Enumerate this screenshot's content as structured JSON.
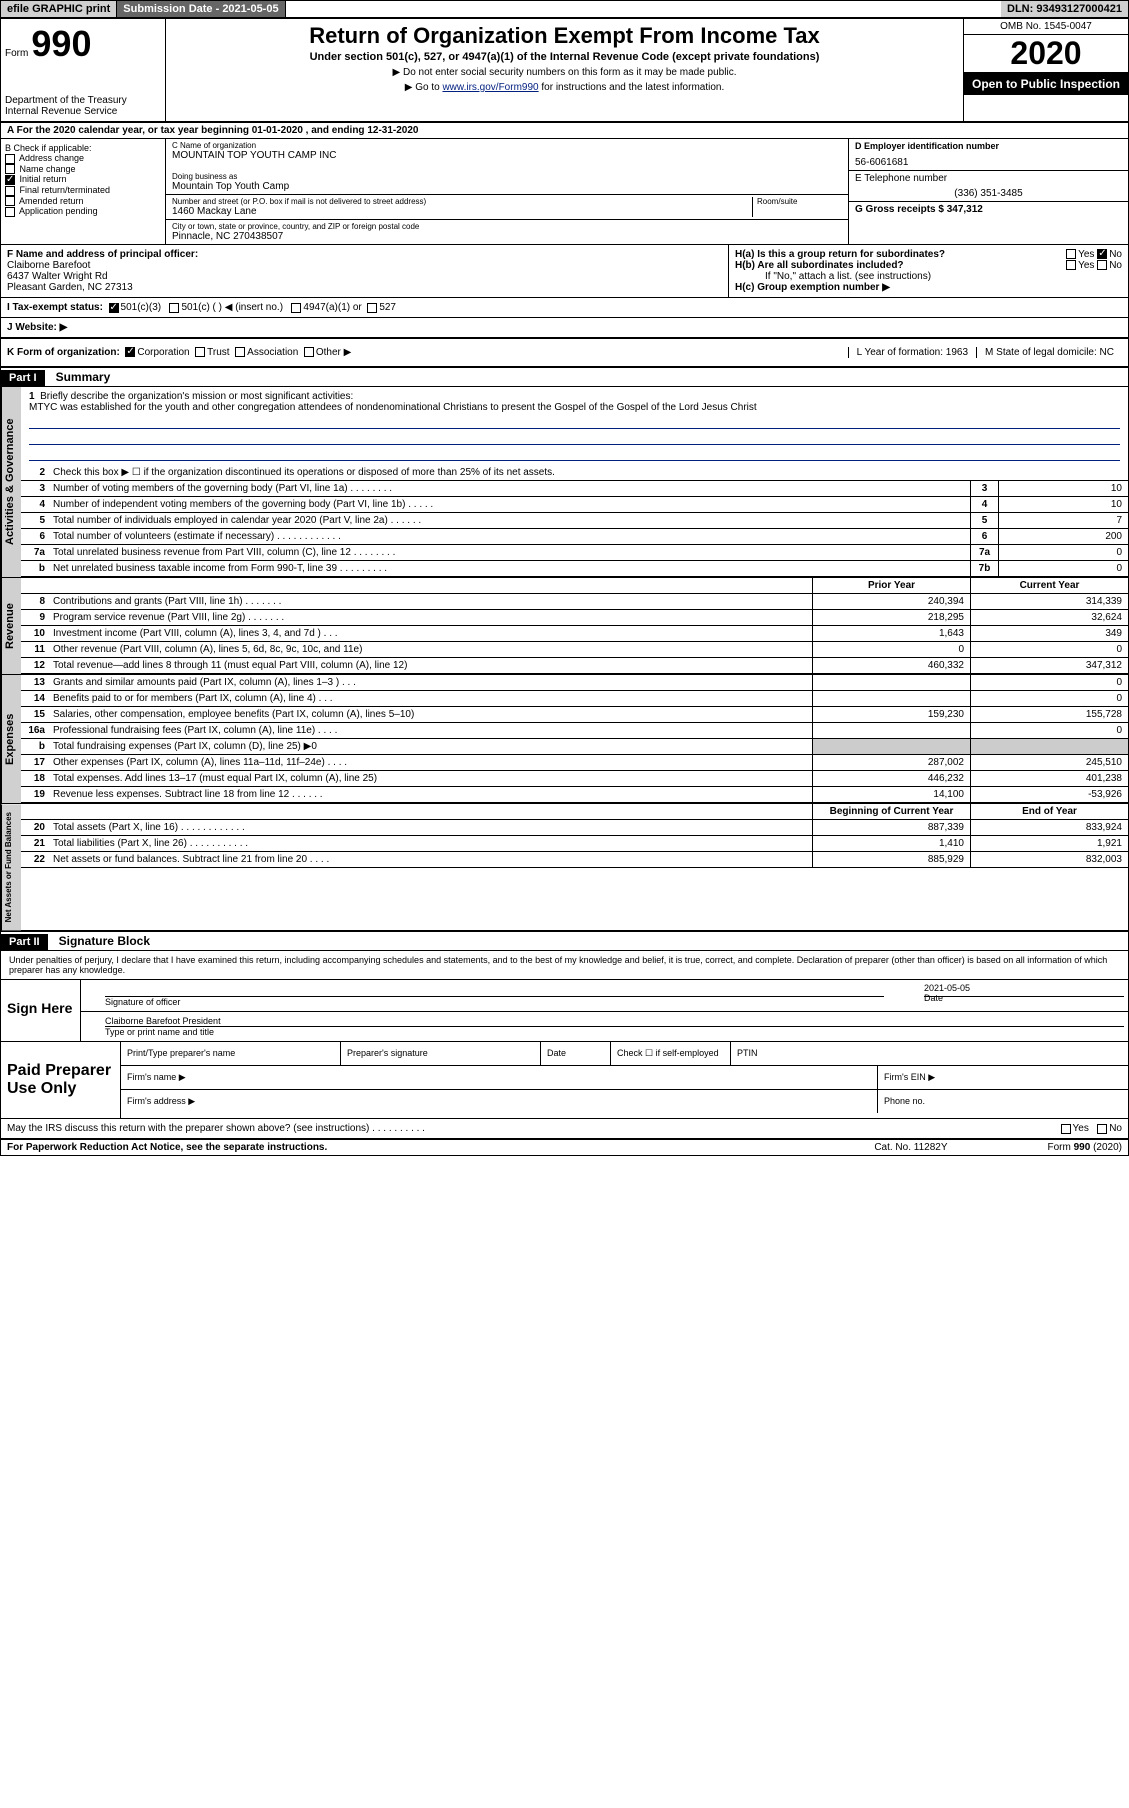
{
  "topbar": {
    "efile": "efile GRAPHIC print",
    "sub_label": "Submission Date - 2021-05-05",
    "dln": "DLN: 93493127000421"
  },
  "header": {
    "form_word": "Form",
    "form_num": "990",
    "dept": "Department of the Treasury\nInternal Revenue Service",
    "title": "Return of Organization Exempt From Income Tax",
    "subtitle": "Under section 501(c), 527, or 4947(a)(1) of the Internal Revenue Code (except private foundations)",
    "hint1": "▶ Do not enter social security numbers on this form as it may be made public.",
    "hint2_pre": "▶ Go to ",
    "hint2_link": "www.irs.gov/Form990",
    "hint2_post": " for instructions and the latest information.",
    "omb": "OMB No. 1545-0047",
    "year": "2020",
    "open": "Open to Public Inspection"
  },
  "line_a": "A  For the 2020 calendar year, or tax year beginning 01-01-2020       , and ending 12-31-2020",
  "section_b": {
    "label": "B Check if applicable:",
    "items": [
      "Address change",
      "Name change",
      "Initial return",
      "Final return/terminated",
      "Amended return",
      "Application pending"
    ],
    "checked_index": 2
  },
  "section_c": {
    "name_label": "C Name of organization",
    "name": "MOUNTAIN TOP YOUTH CAMP INC",
    "dba_label": "Doing business as",
    "dba": "Mountain Top Youth Camp",
    "addr_label": "Number and street (or P.O. box if mail is not delivered to street address)",
    "addr": "1460 Mackay Lane",
    "room": "Room/suite",
    "city_label": "City or town, state or province, country, and ZIP or foreign postal code",
    "city": "Pinnacle, NC  270438507"
  },
  "section_d": {
    "label": "D Employer identification number",
    "ein": "56-6061681",
    "e_label": "E Telephone number",
    "phone": "(336) 351-3485",
    "g_label": "G Gross receipts $ 347,312"
  },
  "section_f": {
    "label": "F  Name and address of principal officer:",
    "name": "Claiborne Barefoot",
    "addr1": "6437 Walter Wright Rd",
    "addr2": "Pleasant Garden, NC  27313"
  },
  "section_h": {
    "ha": "H(a)  Is this a group return for subordinates?",
    "hb": "H(b)  Are all subordinates included?",
    "hb_note": "If \"No,\" attach a list. (see instructions)",
    "hc": "H(c)  Group exemption number ▶",
    "yes": "Yes",
    "no": "No"
  },
  "tax_status": {
    "label": "I   Tax-exempt status:",
    "opts": [
      "501(c)(3)",
      "501(c) (   ) ◀ (insert no.)",
      "4947(a)(1) or",
      "527"
    ]
  },
  "j_label": "J   Website: ▶",
  "k": {
    "label": "K Form of organization:",
    "opts": [
      "Corporation",
      "Trust",
      "Association",
      "Other ▶"
    ],
    "l_label": "L Year of formation: 1963",
    "m_label": "M State of legal domicile: NC"
  },
  "part1": {
    "num": "Part I",
    "title": "Summary"
  },
  "mission": {
    "num": "1",
    "label": "Briefly describe the organization's mission or most significant activities:",
    "text": "MTYC was established for the youth and other congregation attendees of nondenominational Christians to present the Gospel of the Gospel of the Lord Jesus Christ"
  },
  "lines_gov": [
    {
      "n": "2",
      "t": "Check this box ▶ ☐  if the organization discontinued its operations or disposed of more than 25% of its net assets."
    },
    {
      "n": "3",
      "t": "Number of voting members of the governing body (Part VI, line 1a)   .    .    .    .    .    .    .    .",
      "box": "3",
      "v": "10"
    },
    {
      "n": "4",
      "t": "Number of independent voting members of the governing body (Part VI, line 1b)  .    .    .    .    .",
      "box": "4",
      "v": "10"
    },
    {
      "n": "5",
      "t": "Total number of individuals employed in calendar year 2020 (Part V, line 2a)  .    .    .    .    .    .",
      "box": "5",
      "v": "7"
    },
    {
      "n": "6",
      "t": "Total number of volunteers (estimate if necessary)    .    .    .    .    .    .    .    .    .    .    .    .",
      "box": "6",
      "v": "200"
    },
    {
      "n": "7a",
      "t": "Total unrelated business revenue from Part VIII, column (C), line 12  .    .    .    .    .    .    .    .",
      "box": "7a",
      "v": "0"
    },
    {
      "n": "b",
      "t": "Net unrelated business taxable income from Form 990-T, line 39   .    .    .    .    .    .    .    .    .",
      "box": "7b",
      "v": "0"
    }
  ],
  "col_headers": {
    "prior": "Prior Year",
    "current": "Current Year"
  },
  "lines_rev": [
    {
      "n": "8",
      "t": "Contributions and grants (Part VIII, line 1h)   .    .    .    .    .    .    .",
      "p": "240,394",
      "c": "314,339"
    },
    {
      "n": "9",
      "t": "Program service revenue (Part VIII, line 2g)   .    .    .    .    .    .    .",
      "p": "218,295",
      "c": "32,624"
    },
    {
      "n": "10",
      "t": "Investment income (Part VIII, column (A), lines 3, 4, and 7d )   .    .    .",
      "p": "1,643",
      "c": "349"
    },
    {
      "n": "11",
      "t": "Other revenue (Part VIII, column (A), lines 5, 6d, 8c, 9c, 10c, and 11e)",
      "p": "0",
      "c": "0"
    },
    {
      "n": "12",
      "t": "Total revenue—add lines 8 through 11 (must equal Part VIII, column (A), line 12)",
      "p": "460,332",
      "c": "347,312"
    }
  ],
  "lines_exp": [
    {
      "n": "13",
      "t": "Grants and similar amounts paid (Part IX, column (A), lines 1–3 )  .    .    .",
      "p": "",
      "c": "0"
    },
    {
      "n": "14",
      "t": "Benefits paid to or for members (Part IX, column (A), line 4)   .    .    .",
      "p": "",
      "c": "0"
    },
    {
      "n": "15",
      "t": "Salaries, other compensation, employee benefits (Part IX, column (A), lines 5–10)",
      "p": "159,230",
      "c": "155,728"
    },
    {
      "n": "16a",
      "t": "Professional fundraising fees (Part IX, column (A), line 11e)  .    .    .    .",
      "p": "",
      "c": "0"
    },
    {
      "n": "b",
      "t": "Total fundraising expenses (Part IX, column (D), line 25) ▶0",
      "shade": true
    },
    {
      "n": "17",
      "t": "Other expenses (Part IX, column (A), lines 11a–11d, 11f–24e)   .    .    .    .",
      "p": "287,002",
      "c": "245,510"
    },
    {
      "n": "18",
      "t": "Total expenses. Add lines 13–17 (must equal Part IX, column (A), line 25)",
      "p": "446,232",
      "c": "401,238"
    },
    {
      "n": "19",
      "t": "Revenue less expenses. Subtract line 18 from line 12  .    .    .    .    .    .",
      "p": "14,100",
      "c": "-53,926"
    }
  ],
  "net_headers": {
    "beg": "Beginning of Current Year",
    "end": "End of Year"
  },
  "lines_net": [
    {
      "n": "20",
      "t": "Total assets (Part X, line 16)  .    .    .    .    .    .    .    .    .    .    .    .",
      "p": "887,339",
      "c": "833,924"
    },
    {
      "n": "21",
      "t": "Total liabilities (Part X, line 26)   .    .    .    .    .    .    .    .    .    .    .",
      "p": "1,410",
      "c": "1,921"
    },
    {
      "n": "22",
      "t": "Net assets or fund balances. Subtract line 21 from line 20   .    .    .    .",
      "p": "885,929",
      "c": "832,003"
    }
  ],
  "side_labels": {
    "gov": "Activities & Governance",
    "rev": "Revenue",
    "exp": "Expenses",
    "net": "Net Assets or Fund Balances"
  },
  "part2": {
    "num": "Part II",
    "title": "Signature Block"
  },
  "sig_declare": "Under penalties of perjury, I declare that I have examined this return, including accompanying schedules and statements, and to the best of my knowledge and belief, it is true, correct, and complete. Declaration of preparer (other than officer) is based on all information of which preparer has any knowledge.",
  "sign": {
    "label": "Sign Here",
    "sig_label": "Signature of officer",
    "date": "2021-05-05",
    "date_label": "Date",
    "name": "Claiborne Barefoot President",
    "name_label": "Type or print name and title"
  },
  "paid": {
    "label": "Paid Preparer Use Only",
    "h1": "Print/Type preparer's name",
    "h2": "Preparer's signature",
    "h3": "Date",
    "h4_pre": "Check ☐ if self-employed",
    "h5": "PTIN",
    "firm_name": "Firm's name    ▶",
    "firm_ein": "Firm's EIN ▶",
    "firm_addr": "Firm's address ▶",
    "phone": "Phone no."
  },
  "discuss": {
    "text": "May the IRS discuss this return with the preparer shown above? (see instructions)   .    .    .    .    .    .    .    .    .    .",
    "yes": "Yes",
    "no": "No"
  },
  "footer": {
    "left": "For Paperwork Reduction Act Notice, see the separate instructions.",
    "mid": "Cat. No. 11282Y",
    "right": "Form 990 (2020)"
  }
}
